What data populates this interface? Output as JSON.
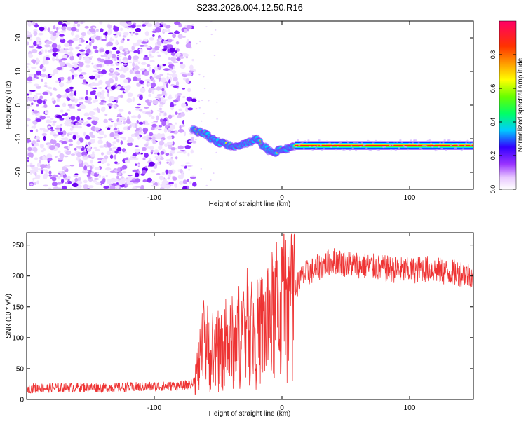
{
  "title": "S233.2026.004.12.50.R16",
  "chart_data": [
    {
      "type": "heatmap",
      "xlabel": "Height of straight line (km)",
      "ylabel": "Frequency (Hz)",
      "xlim": [
        -200,
        150
      ],
      "ylim": [
        -25,
        25
      ],
      "x_ticks": [
        -100,
        0,
        100
      ],
      "y_ticks": [
        -20,
        -10,
        0,
        10,
        20
      ],
      "signal_track": {
        "x": [
          -70,
          -65,
          -60,
          -55,
          -50,
          -45,
          -40,
          -35,
          -30,
          -25,
          -20,
          -15,
          -10,
          -5,
          0,
          5,
          10,
          20,
          40,
          60,
          80,
          100,
          120,
          150
        ],
        "frequency": [
          -7,
          -8,
          -8.5,
          -10,
          -11,
          -11.5,
          -12,
          -12.5,
          -11.5,
          -11,
          -10,
          -12,
          -13.5,
          -14,
          -13,
          -13,
          -12,
          -12,
          -12,
          -12,
          -12,
          -12,
          -12,
          -12
        ]
      },
      "noise_region": {
        "x_from": -200,
        "x_to": -68
      },
      "colorbar": {
        "label": "Normalized spectral amplitude",
        "range": [
          0,
          1
        ],
        "ticks": [
          0.0,
          0.2,
          0.4,
          0.6,
          0.8
        ]
      }
    },
    {
      "type": "line",
      "xlabel": "Height of straight line (km)",
      "ylabel": "SNR (10 * v/v)",
      "xlim": [
        -200,
        150
      ],
      "ylim": [
        0,
        270
      ],
      "x_ticks": [
        -100,
        0,
        100
      ],
      "y_ticks": [
        0,
        50,
        100,
        150,
        200,
        250
      ],
      "series": [
        {
          "color": "#ee3333",
          "x": [
            -200,
            -180,
            -160,
            -140,
            -120,
            -100,
            -80,
            -70,
            -65,
            -60,
            -55,
            -50,
            -45,
            -40,
            -35,
            -30,
            -25,
            -20,
            -15,
            -10,
            -5,
            0,
            5,
            10,
            15,
            20,
            30,
            40,
            50,
            60,
            70,
            80,
            90,
            100,
            110,
            120,
            130,
            140,
            150
          ],
          "y": [
            18,
            19,
            20,
            19,
            20,
            21,
            22,
            25,
            55,
            100,
            60,
            70,
            80,
            90,
            100,
            110,
            120,
            105,
            115,
            125,
            140,
            150,
            170,
            180,
            195,
            205,
            215,
            225,
            220,
            218,
            215,
            212,
            210,
            208,
            212,
            210,
            205,
            205,
            200
          ]
        }
      ]
    }
  ]
}
